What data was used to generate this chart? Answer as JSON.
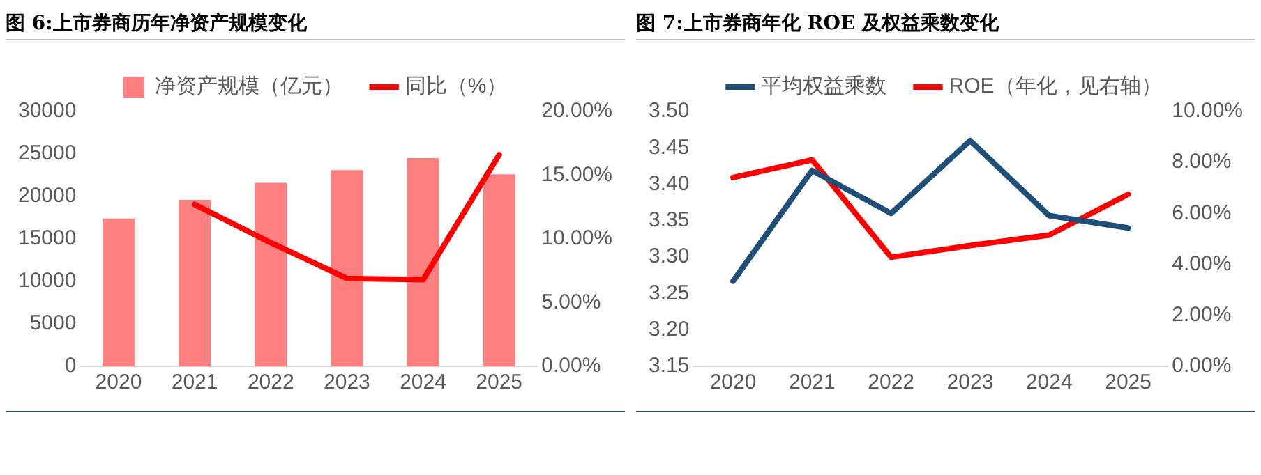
{
  "chart_data": [
    {
      "type": "bar",
      "title": "图 6:上市券商历年净资产规模变化",
      "categories": [
        "2020",
        "2021",
        "2022",
        "2023",
        "2024",
        "2025"
      ],
      "series": [
        {
          "name": "净资产规模（亿元）",
          "type": "bar",
          "color": "#ff8080",
          "values": [
            17400,
            19600,
            21600,
            23100,
            24500,
            22600
          ]
        },
        {
          "name": "同比（%）",
          "type": "line",
          "axis": "y2",
          "color": "#ff0000",
          "values": [
            null,
            12.7,
            9.7,
            6.9,
            6.8,
            16.6
          ]
        }
      ],
      "ylim": [
        0,
        30000
      ],
      "yticks": [
        0,
        5000,
        10000,
        15000,
        20000,
        25000,
        30000
      ],
      "y2lim": [
        0,
        20
      ],
      "y2ticks": [
        {
          "value": 0,
          "label": "0.00%"
        },
        {
          "value": 5,
          "label": "5.00%"
        },
        {
          "value": 10,
          "label": "10.00%"
        },
        {
          "value": 15,
          "label": "15.00%"
        },
        {
          "value": 20,
          "label": "20.00%"
        }
      ],
      "grid": false,
      "legend": "top",
      "marker": "none"
    },
    {
      "type": "line",
      "title": "图 7:上市券商年化 ROE 及权益乘数变化",
      "categories": [
        "2020",
        "2021",
        "2022",
        "2023",
        "2024",
        "2025"
      ],
      "series": [
        {
          "name": "平均权益乘数",
          "color": "#1f4e79",
          "values": [
            3.267,
            3.419,
            3.36,
            3.46,
            3.357,
            3.34
          ]
        },
        {
          "name": "ROE（年化，见右轴）",
          "axis": "y2",
          "color": "#ff0000",
          "values": [
            7.41,
            8.1,
            4.28,
            4.74,
            5.15,
            6.75
          ]
        }
      ],
      "ylim": [
        3.15,
        3.5
      ],
      "yticks": [
        {
          "value": 3.15,
          "label": "3.15"
        },
        {
          "value": 3.2,
          "label": "3.20"
        },
        {
          "value": 3.25,
          "label": "3.25"
        },
        {
          "value": 3.3,
          "label": "3.30"
        },
        {
          "value": 3.35,
          "label": "3.35"
        },
        {
          "value": 3.4,
          "label": "3.40"
        },
        {
          "value": 3.45,
          "label": "3.45"
        },
        {
          "value": 3.5,
          "label": "3.50"
        }
      ],
      "y2lim": [
        0,
        10
      ],
      "y2ticks": [
        {
          "value": 0,
          "label": "0.00%"
        },
        {
          "value": 2,
          "label": "2.00%"
        },
        {
          "value": 4,
          "label": "4.00%"
        },
        {
          "value": 6,
          "label": "6.00%"
        },
        {
          "value": 8,
          "label": "8.00%"
        },
        {
          "value": 10,
          "label": "10.00%"
        }
      ],
      "grid": false,
      "legend": "top",
      "marker": "none"
    }
  ]
}
